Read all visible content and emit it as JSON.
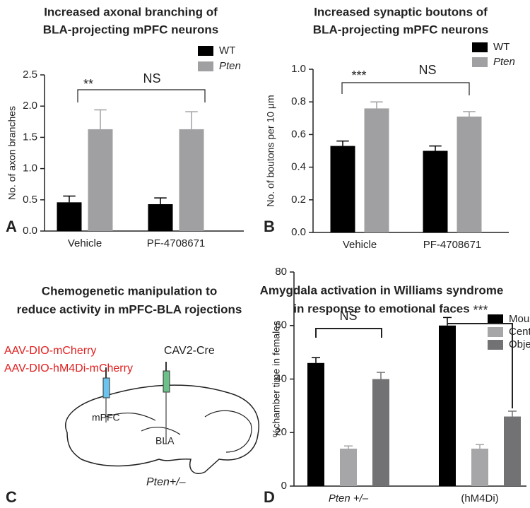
{
  "chart_data": [
    {
      "type": "bar",
      "panel": "A",
      "title": [
        "Increased axonal branching of",
        "BLA-projecting mPFC neurons"
      ],
      "y_label": "No. of axon branches",
      "categories": [
        "Vehicle",
        "PF-4708671"
      ],
      "series": [
        {
          "name": "WT",
          "color": "#000000",
          "values": [
            0.46,
            0.43
          ],
          "errors": [
            0.1,
            0.1
          ]
        },
        {
          "name": "Pten",
          "color": "#a0a0a2",
          "values": [
            1.63,
            1.63
          ],
          "errors": [
            0.31,
            0.28
          ]
        }
      ],
      "ylim": [
        0,
        2.5
      ],
      "yticks": [
        {
          "value": 0,
          "label": "0.0"
        },
        0.5,
        {
          "value": 1,
          "label": "1.0"
        },
        1.5,
        {
          "value": 2,
          "label": "2.0"
        },
        2.5
      ],
      "annotations": [
        "**",
        "NS"
      ]
    },
    {
      "type": "bar",
      "panel": "B",
      "title": [
        "Increased synaptic boutons of",
        "BLA-projecting mPFC neurons"
      ],
      "y_label": "No. of boutons per 10 μm",
      "categories": [
        "Vehicle",
        "PF-4708671"
      ],
      "series": [
        {
          "name": "WT",
          "color": "#000000",
          "values": [
            0.53,
            0.5
          ],
          "errors": [
            0.03,
            0.03
          ]
        },
        {
          "name": "Pten",
          "color": "#a0a0a2",
          "values": [
            0.76,
            0.71
          ],
          "errors": [
            0.04,
            0.03
          ]
        }
      ],
      "ylim": [
        0,
        1
      ],
      "yticks": [
        {
          "value": 0,
          "label": "0.0"
        },
        0.2,
        0.4,
        0.6,
        0.8,
        {
          "value": 1,
          "label": "1.0"
        }
      ],
      "annotations": [
        "***",
        "NS"
      ]
    },
    {
      "type": "bar",
      "panel": "D",
      "title": [
        "Amygdala activation in Williams syndrome",
        "in response to emotional faces"
      ],
      "y_label": "%chamber time in females",
      "categories": [
        "Pten +/–",
        "(hM4Di)"
      ],
      "series": [
        {
          "name": "Mouse",
          "color": "#000000",
          "values": [
            46,
            60
          ],
          "errors": [
            2,
            3
          ]
        },
        {
          "name": "Center",
          "color": "#a6a6a8",
          "values": [
            14,
            14
          ],
          "errors": [
            1,
            1.5
          ]
        },
        {
          "name": "Object",
          "color": "#727274",
          "values": [
            40,
            26
          ],
          "errors": [
            2.5,
            2
          ]
        }
      ],
      "ylim": [
        0,
        80
      ],
      "yticks": [
        0,
        20,
        40,
        60,
        80
      ],
      "annotations": [
        "NS",
        "***"
      ]
    }
  ],
  "diagram": {
    "panel": "C",
    "title": [
      "Chemogenetic manipulation to",
      "reduce activity in mPFC-BLA rojections"
    ],
    "injection_left": [
      "AAV-DIO-mCherry",
      "AAV-DIO-hM4Di-mCherry"
    ],
    "injection_right": "CAV2-Cre",
    "region_1": "mPFC",
    "region_2": "BLA",
    "genotype": "Pten+/–"
  }
}
